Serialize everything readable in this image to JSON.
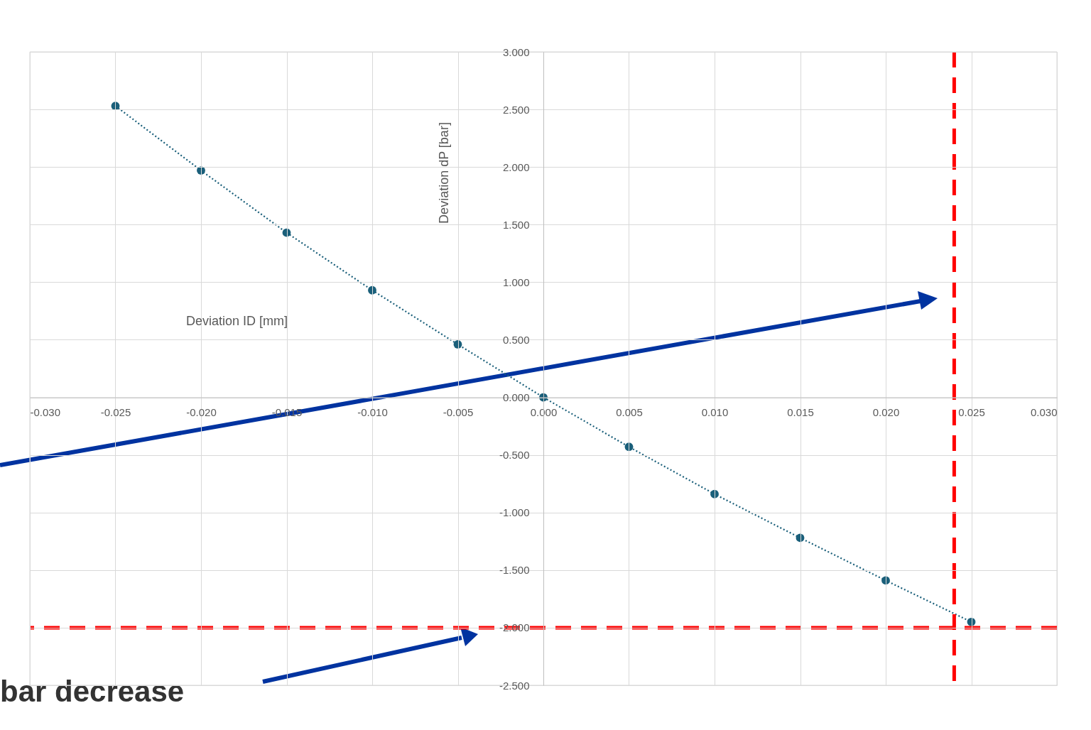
{
  "chart_data": {
    "type": "line",
    "xlabel": "Deviation ID [mm]",
    "ylabel": "Deviation dP [bar]",
    "x": [
      -0.025,
      -0.02,
      -0.015,
      -0.01,
      -0.005,
      0,
      0.005,
      0.01,
      0.015,
      0.02,
      0.025
    ],
    "series": [
      {
        "color": "#1a5f7a",
        "values": [
          2.53,
          1.97,
          1.43,
          0.93,
          0.46,
          0.0,
          -0.43,
          -0.84,
          -1.22,
          -1.59,
          -1.95
        ]
      }
    ],
    "xlim": [
      -0.03,
      0.03
    ],
    "xticks": [
      {
        "value": -0.03,
        "label": "-0.030"
      },
      {
        "value": -0.025,
        "label": "-0.025"
      },
      {
        "value": -0.02,
        "label": "-0.020"
      },
      {
        "value": -0.015,
        "label": "-0.015"
      },
      {
        "value": -0.01,
        "label": "-0.010"
      },
      {
        "value": -0.005,
        "label": "-0.005"
      },
      {
        "value": 0,
        "label": "0.000"
      },
      {
        "value": 0.005,
        "label": "0.005"
      },
      {
        "value": 0.01,
        "label": "0.010"
      },
      {
        "value": 0.015,
        "label": "0.015"
      },
      {
        "value": 0.02,
        "label": "0.020"
      },
      {
        "value": 0.025,
        "label": "0.025"
      },
      {
        "value": 0.03,
        "label": "0.030"
      }
    ],
    "ylim": [
      -2.5,
      3
    ],
    "yticks": [
      {
        "value": -2.5,
        "label": "-2.500"
      },
      {
        "value": -2,
        "label": "-2.000"
      },
      {
        "value": -1.5,
        "label": "-1.500"
      },
      {
        "value": -1,
        "label": "-1.000"
      },
      {
        "value": -0.5,
        "label": "-0.500"
      },
      {
        "value": 0,
        "label": "0.000"
      },
      {
        "value": 0.5,
        "label": "0.500"
      },
      {
        "value": 1,
        "label": "1.000"
      },
      {
        "value": 1.5,
        "label": "1.500"
      },
      {
        "value": 2,
        "label": "2.000"
      },
      {
        "value": 2.5,
        "label": "2.500"
      },
      {
        "value": 3,
        "label": "3.000"
      }
    ],
    "ref_lines": [
      {
        "axis": "x",
        "value": 0.024,
        "color": "#ff0000",
        "line_style": "dashed"
      },
      {
        "axis": "y",
        "value": -2,
        "color": "#ff0000",
        "line_style": "dashed"
      }
    ],
    "annotations": [
      "bar decrease"
    ],
    "grid": true,
    "marker": "circle",
    "line_style": "dotted"
  }
}
